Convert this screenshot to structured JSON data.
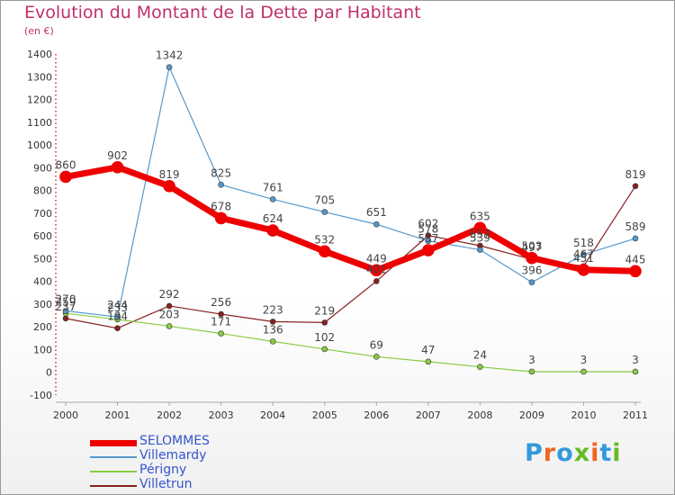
{
  "chart_data": {
    "type": "line",
    "title": "Evolution du Montant de la Dette par Habitant",
    "subtitle": "(en €)",
    "x": [
      2000,
      2001,
      2002,
      2003,
      2004,
      2005,
      2006,
      2007,
      2008,
      2009,
      2010,
      2011
    ],
    "ylim": [
      -100,
      1400
    ],
    "yticks": [
      -100,
      0,
      100,
      200,
      300,
      400,
      500,
      600,
      700,
      800,
      900,
      1000,
      1100,
      1200,
      1300,
      1400
    ],
    "grid": false,
    "legend_position": "bottom-left",
    "series": [
      {
        "name": "SELOMMES",
        "color": "#ee0000",
        "values": [
          860,
          902,
          819,
          678,
          624,
          532,
          449,
          537,
          635,
          503,
          451,
          445
        ],
        "labels": [
          "860",
          "902",
          "819",
          "678",
          "624",
          "532",
          "449",
          "537",
          "635",
          "503",
          "451",
          "445"
        ]
      },
      {
        "name": "Villemardy",
        "color": "#5599cc",
        "values": [
          270,
          244,
          1342,
          825,
          761,
          705,
          651,
          578,
          539,
          396,
          518,
          589
        ],
        "labels": [
          "270",
          "244",
          "1342",
          "825",
          "761",
          "705",
          "651",
          "578",
          "539",
          "396",
          "518",
          "589"
        ]
      },
      {
        "name": "Périgny",
        "color": "#88cc44",
        "values": [
          259,
          233,
          203,
          171,
          136,
          102,
          69,
          47,
          24,
          3,
          3,
          3
        ],
        "labels": [
          "259",
          "233",
          "203",
          "171",
          "136",
          "102",
          "69",
          "47",
          "24",
          "3",
          "3",
          "3"
        ]
      },
      {
        "name": "Villetrun",
        "color": "#882222",
        "values": [
          237,
          194,
          292,
          256,
          223,
          219,
          401,
          602,
          557,
          497,
          467,
          819
        ],
        "labels": [
          "237",
          "194",
          "292",
          "256",
          "223",
          "219",
          "401",
          "602",
          "557",
          "497",
          "467",
          "819"
        ]
      }
    ]
  },
  "logo": {
    "text": "Proxiti",
    "colors": [
      "#3399dd",
      "#ee6622",
      "#3399dd",
      "#66bb22",
      "#ee6622",
      "#3399dd",
      "#66bb22"
    ]
  }
}
